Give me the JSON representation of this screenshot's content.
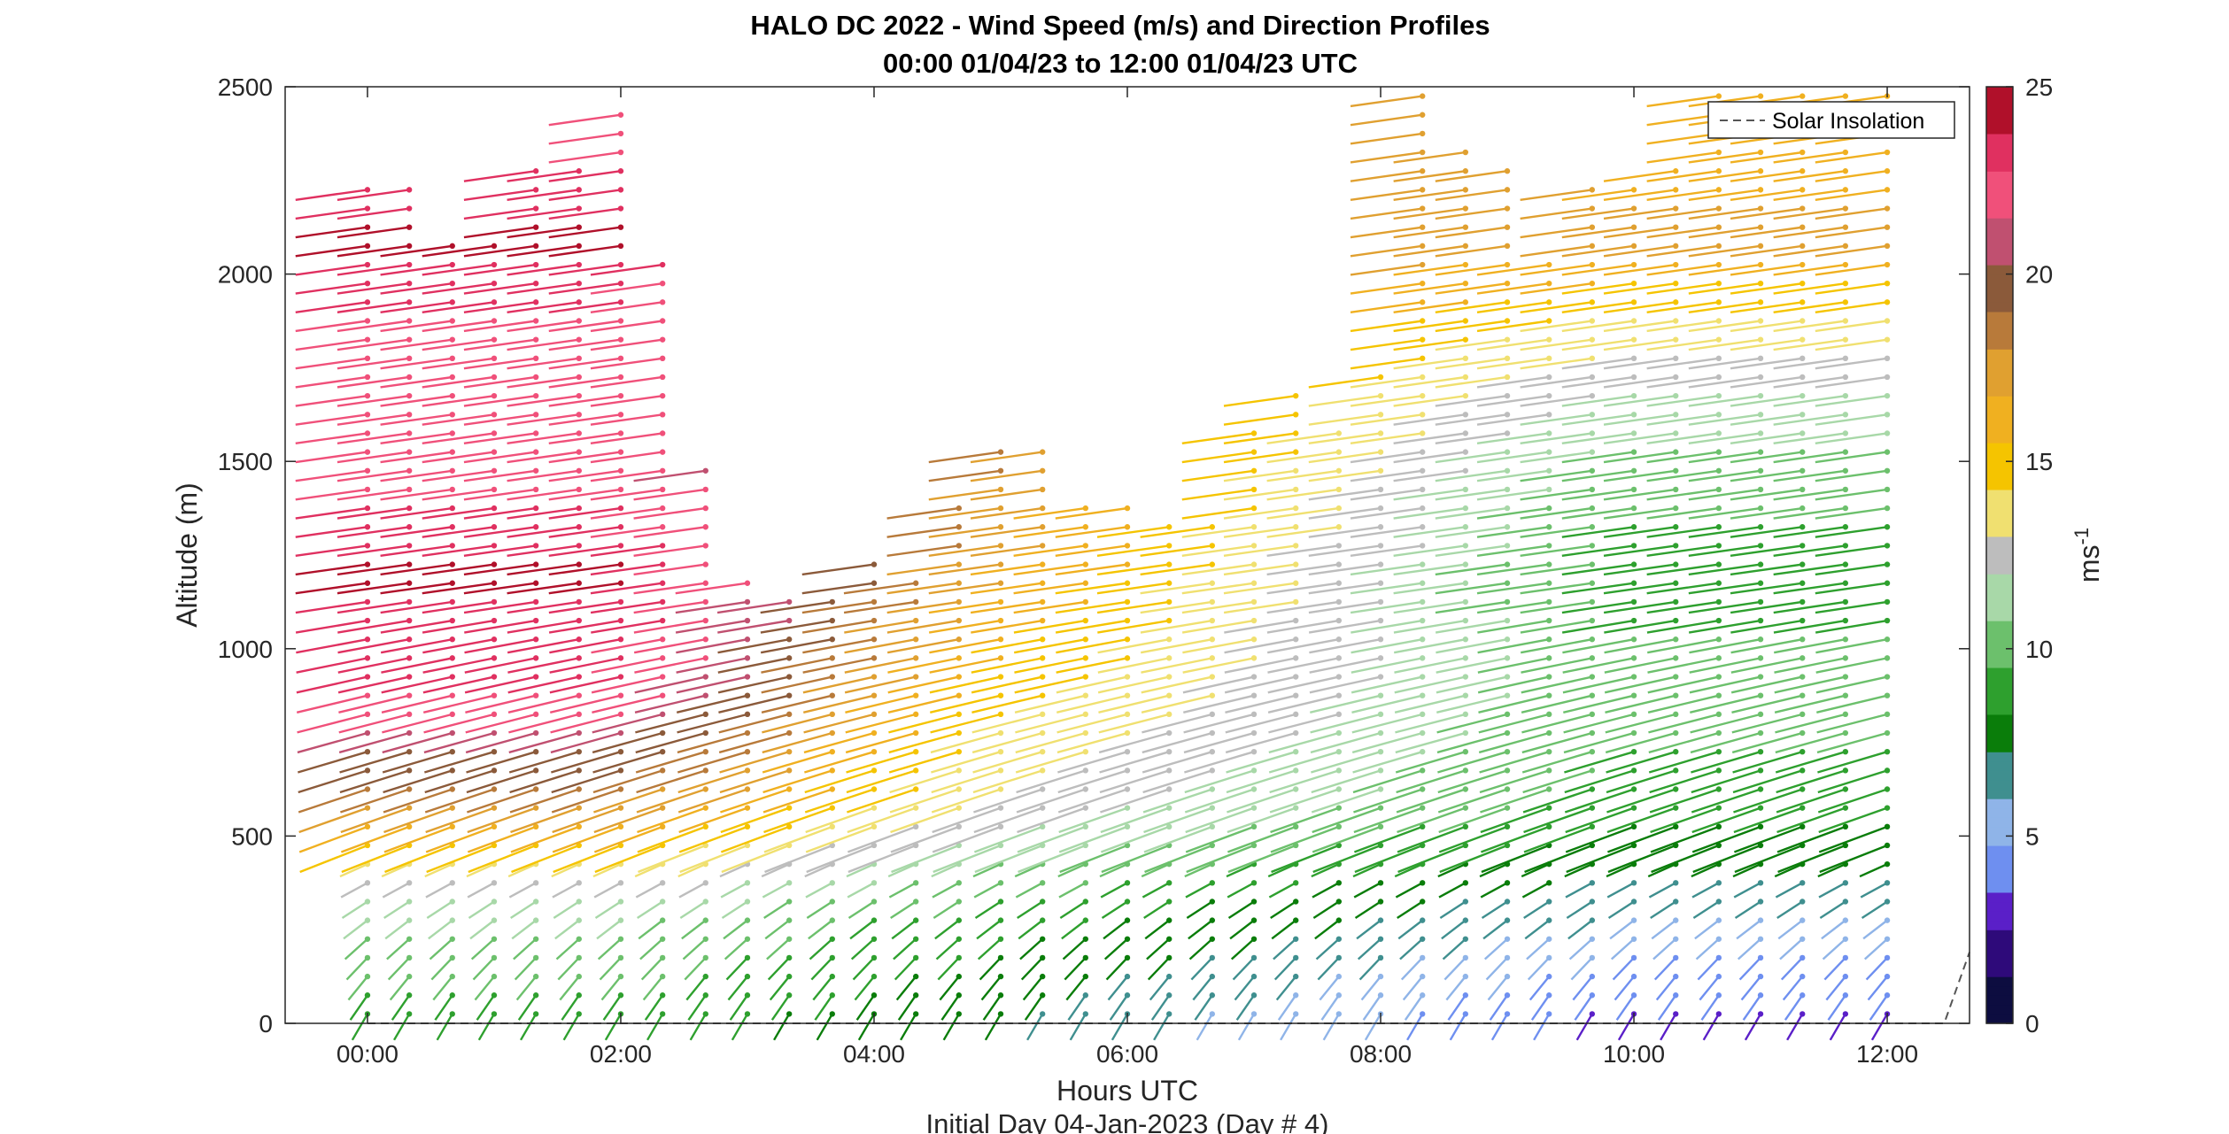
{
  "chart_data": {
    "type": "wind-barb-profile",
    "title": "HALO DC 2022 - Wind Speed (m/s) and Direction Profiles",
    "subtitle": "00:00 01/04/23 to 12:00 01/04/23  UTC",
    "xlabel": "Hours UTC",
    "x_sublabel": "Initial Day 04-Jan-2023 (Day # 4)",
    "ylabel": "Altitude (m)",
    "xlim_hours": [
      -0.65,
      12.65
    ],
    "ylim": [
      0,
      2500
    ],
    "xticks": [
      "00:00",
      "02:00",
      "04:00",
      "06:00",
      "08:00",
      "10:00",
      "12:00"
    ],
    "yticks": [
      "0",
      "500",
      "1000",
      "1500",
      "2000",
      "2500"
    ],
    "colorbar": {
      "label": "ms",
      "label_exponent": "-1",
      "range": [
        0,
        25
      ],
      "ticks": [
        "0",
        "5",
        "10",
        "15",
        "20",
        "25"
      ],
      "colors": [
        "#0d0d40",
        "#2e0a7a",
        "#5a1fc8",
        "#6e8ff0",
        "#8fb4e8",
        "#3f8f8f",
        "#0a7d0a",
        "#2ea02e",
        "#6cc06c",
        "#a8d8a8",
        "#bdbdbd",
        "#f0e070",
        "#f5c400",
        "#f0b020",
        "#e0a030",
        "#b87a3a",
        "#8b5a3a",
        "#c05070",
        "#f0507a",
        "#e03060",
        "#b0102a"
      ]
    },
    "legend": {
      "label": "Solar Insolation",
      "position": "top-right",
      "line_style": "dashed"
    },
    "profile_times_hours": [
      0,
      0.33,
      0.67,
      1.0,
      1.33,
      1.67,
      2.0,
      2.33,
      2.67,
      3.0,
      3.33,
      3.67,
      4.0,
      4.33,
      4.67,
      5.0,
      5.33,
      5.67,
      6.0,
      6.33,
      6.67,
      7.0,
      7.33,
      7.67,
      8.0,
      8.33,
      8.67,
      9.0,
      9.33,
      9.67,
      10.0,
      10.33,
      10.67,
      11.0,
      11.33,
      11.67,
      12.0
    ],
    "top_altitude_m": [
      2240,
      2240,
      2100,
      2100,
      2280,
      2280,
      2450,
      2040,
      1500,
      1210,
      1170,
      1170,
      1260,
      1220,
      1410,
      1550,
      1550,
      1420,
      1400,
      1330,
      1360,
      1620,
      1680,
      1620,
      1740,
      2500,
      2330,
      2280,
      2060,
      2240,
      2240,
      2310,
      2500,
      2500,
      2500,
      2500,
      2500
    ],
    "speed_knots_m_s": {
      "altitude_m": [
        0,
        300,
        600,
        900,
        1200,
        1500,
        1800,
        2100,
        2400
      ],
      "early_00_02": [
        9,
        11,
        18,
        23,
        24,
        22,
        22,
        24,
        22
      ],
      "mid_04_06": [
        7,
        9,
        13,
        15,
        17,
        18,
        18,
        18,
        18
      ],
      "late_10_12": [
        3,
        6,
        9,
        10,
        9,
        10,
        13,
        17,
        16
      ]
    },
    "direction_deg_near_surface": 225,
    "direction_deg_aloft": 260,
    "solar_insolation": {
      "hours": [
        0,
        12.2,
        12.45,
        12.65
      ],
      "altitude_m": [
        0,
        0,
        0,
        190
      ]
    }
  }
}
